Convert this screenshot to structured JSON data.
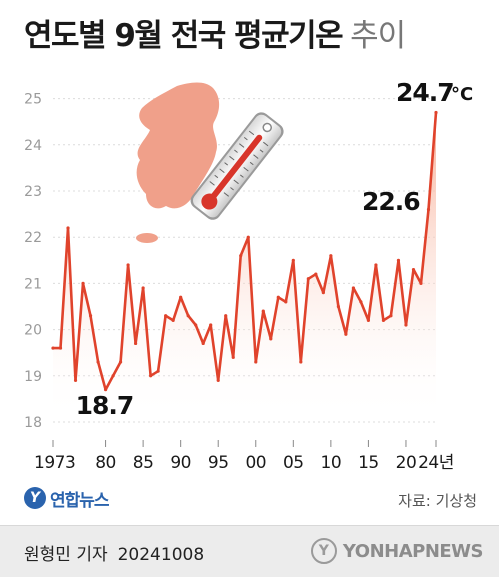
{
  "header": {
    "title": "연도별 9월 전국 평균기온",
    "subtitle": "추이"
  },
  "chart_data": {
    "type": "area",
    "title": "연도별 9월 전국 평균기온 추이",
    "unit": "°C",
    "xlabel": "",
    "ylabel": "",
    "x": [
      1973,
      1974,
      1975,
      1976,
      1977,
      1978,
      1979,
      1980,
      1981,
      1982,
      1983,
      1984,
      1985,
      1986,
      1987,
      1988,
      1989,
      1990,
      1991,
      1992,
      1993,
      1994,
      1995,
      1996,
      1997,
      1998,
      1999,
      2000,
      2001,
      2002,
      2003,
      2004,
      2005,
      2006,
      2007,
      2008,
      2009,
      2010,
      2011,
      2012,
      2013,
      2014,
      2015,
      2016,
      2017,
      2018,
      2019,
      2020,
      2021,
      2022,
      2023,
      2024
    ],
    "values": [
      19.6,
      19.6,
      22.2,
      18.9,
      21.0,
      20.3,
      19.3,
      18.7,
      19.0,
      19.3,
      21.4,
      19.7,
      20.9,
      19.0,
      19.1,
      20.3,
      20.2,
      20.7,
      20.3,
      20.1,
      19.7,
      20.1,
      18.9,
      20.3,
      19.4,
      21.6,
      22.0,
      19.3,
      20.4,
      19.8,
      20.7,
      20.6,
      21.5,
      19.3,
      21.1,
      21.2,
      20.8,
      21.6,
      20.5,
      19.9,
      20.9,
      20.6,
      20.2,
      21.4,
      20.2,
      20.3,
      21.5,
      20.1,
      21.3,
      21.0,
      22.6,
      24.7
    ],
    "ylim": [
      18,
      25.5
    ],
    "yticks": [
      18,
      19,
      20,
      21,
      22,
      23,
      24,
      25
    ],
    "xtick_labels": [
      {
        "x": 1973,
        "label": "1973"
      },
      {
        "x": 1980,
        "label": "80"
      },
      {
        "x": 1985,
        "label": "85"
      },
      {
        "x": 1990,
        "label": "90"
      },
      {
        "x": 1995,
        "label": "95"
      },
      {
        "x": 2000,
        "label": "00"
      },
      {
        "x": 2005,
        "label": "05"
      },
      {
        "x": 2010,
        "label": "10"
      },
      {
        "x": 2015,
        "label": "15"
      },
      {
        "x": 2020,
        "label": "20"
      },
      {
        "x": 2024,
        "label": "24년"
      }
    ],
    "annotations": [
      {
        "x": 1980,
        "y": 18.7,
        "label": "18.7"
      },
      {
        "x": 2023,
        "y": 22.6,
        "label": "22.6"
      },
      {
        "x": 2024,
        "y": 24.7,
        "label": "24.7"
      }
    ],
    "grid": true,
    "colors": {
      "line": "#e0432c",
      "marker": "#e0432c",
      "fill_top": "#f7a990",
      "grid": "#dcdcdc",
      "tick": "#9a9a9a"
    }
  },
  "illustration": {
    "map_icon": "korea-map-icon",
    "thermometer_icon": "thermometer-icon",
    "map_color": "#f0a08a"
  },
  "footer": {
    "logo_text": "연합뉴스",
    "source": "자료: 기상청",
    "reporter": "원형민 기자",
    "date": "20241008",
    "agency": "YONHAPNEWS"
  }
}
